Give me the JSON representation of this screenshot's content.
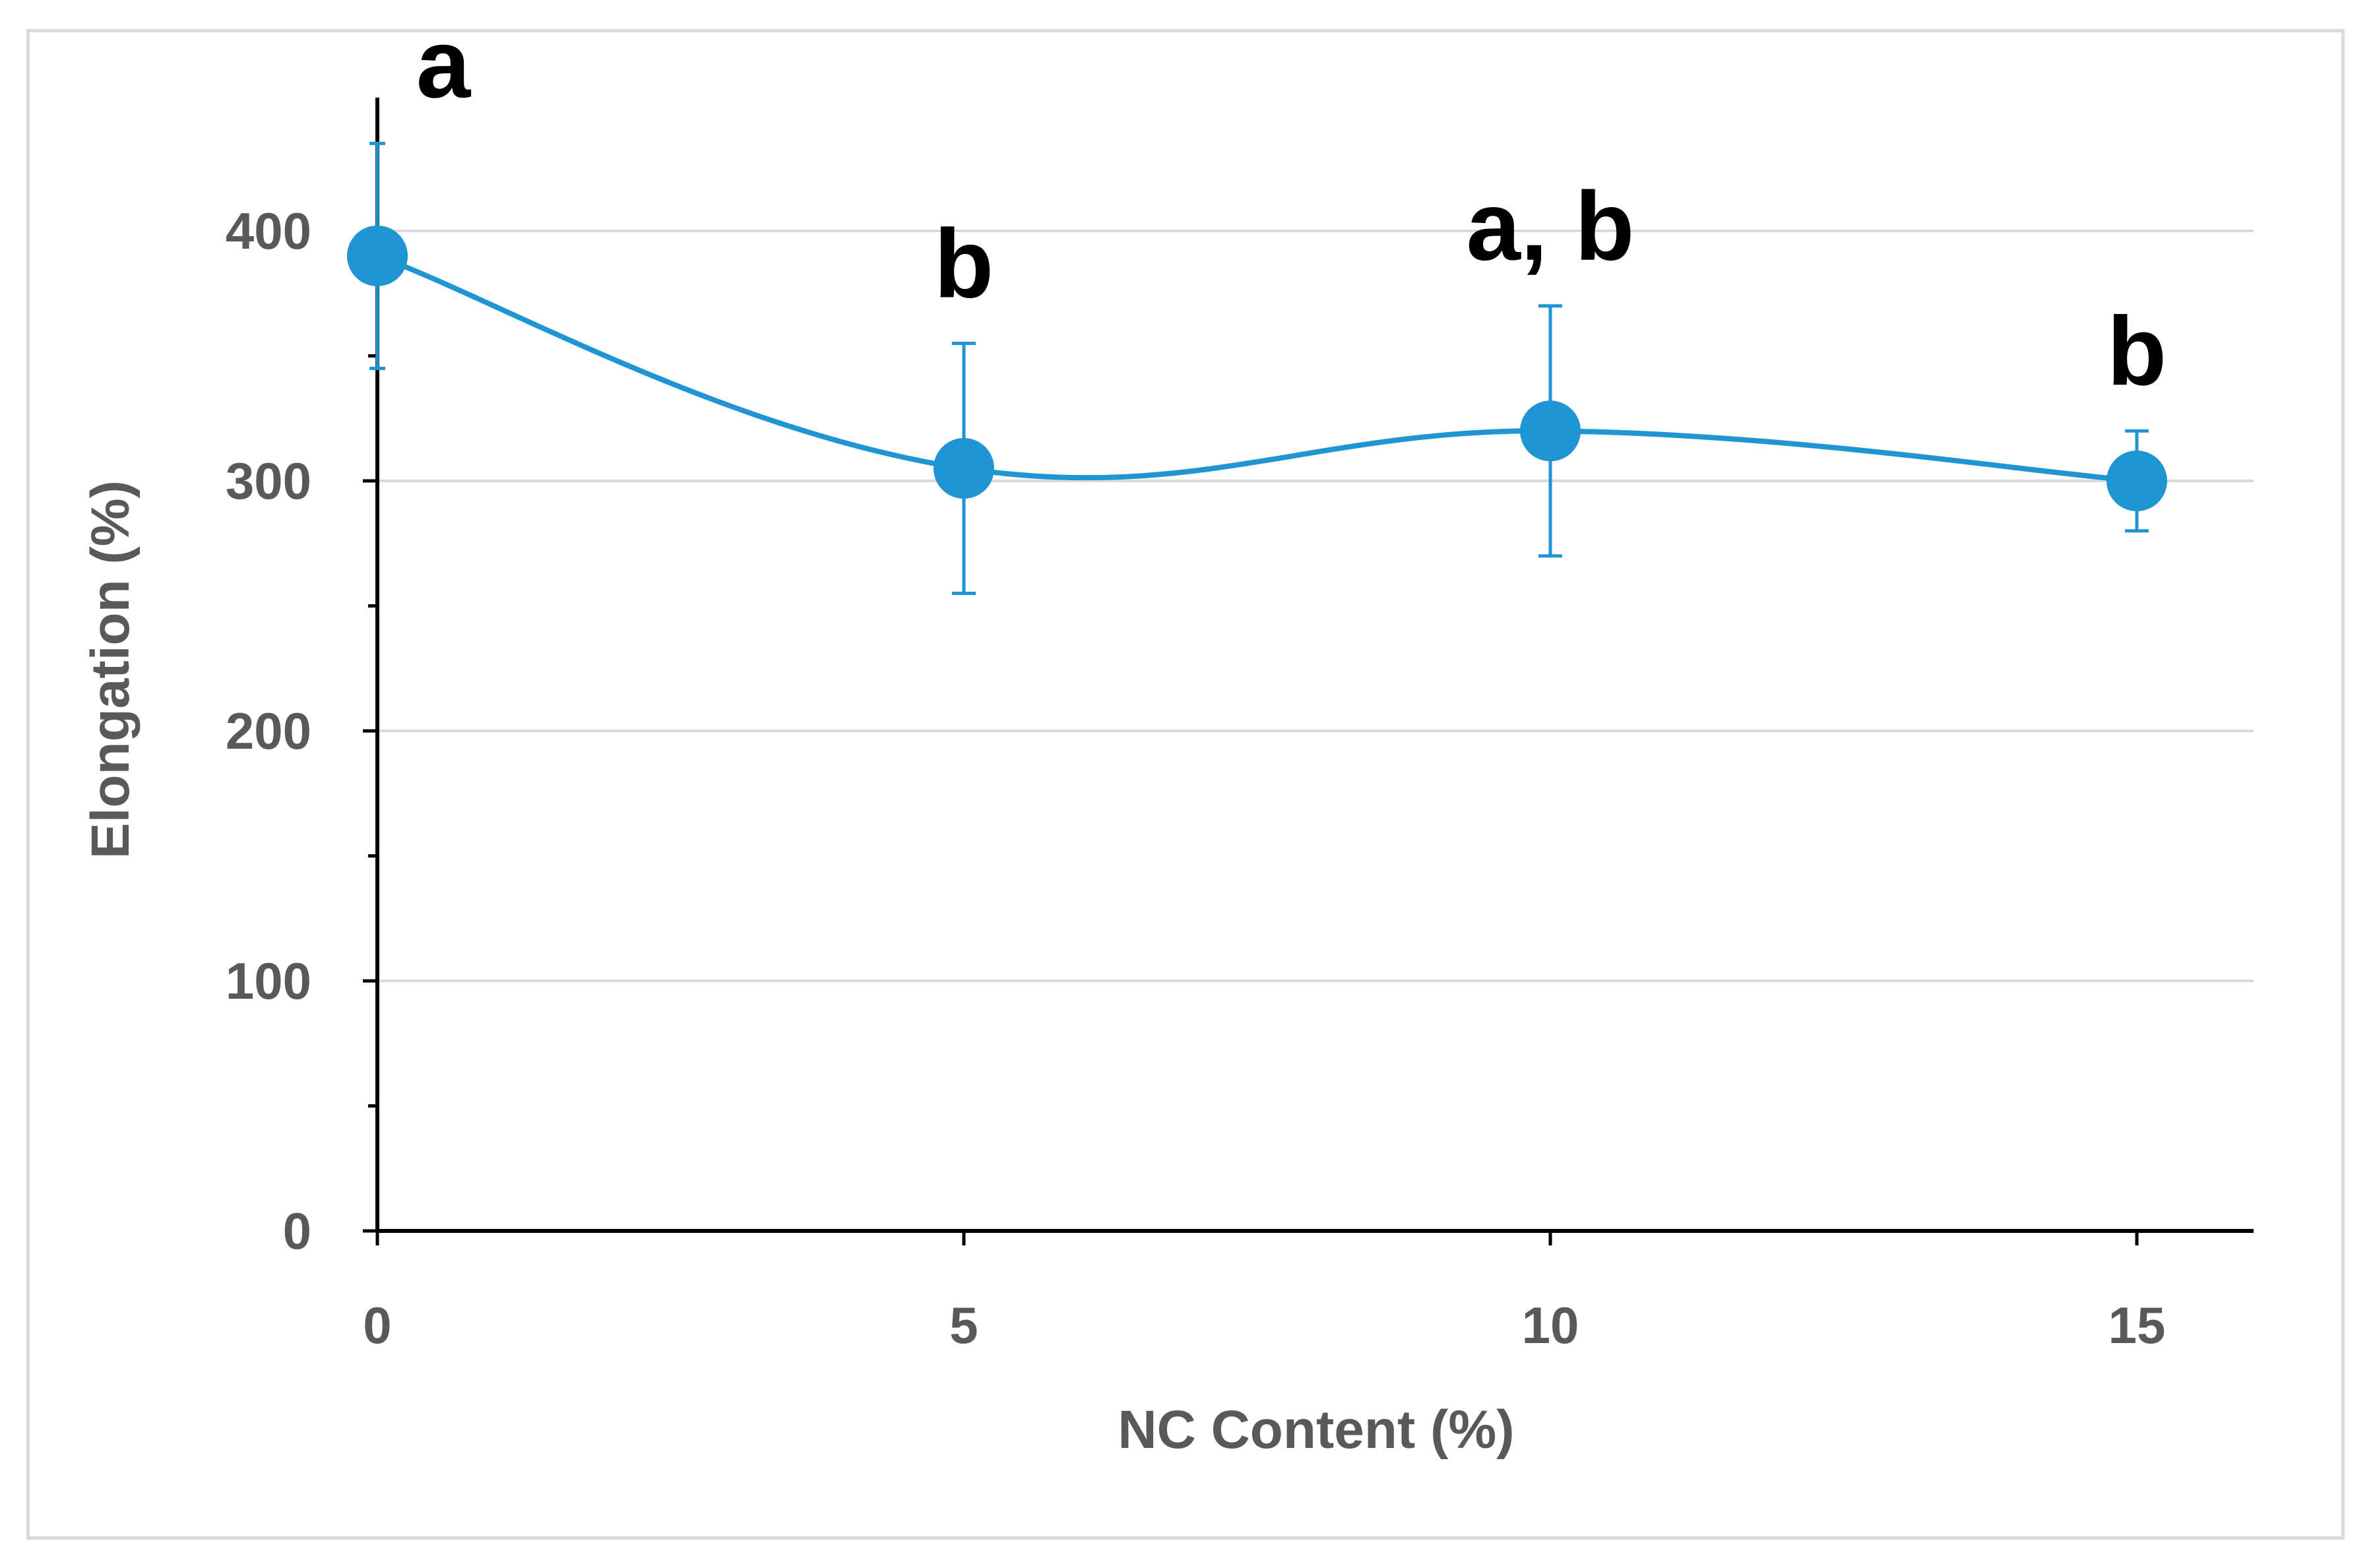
{
  "chart_data": {
    "type": "line",
    "xlabel": "NC Content (%)",
    "ylabel": "Elongation (%)",
    "xlim": [
      0,
      16
    ],
    "ylim": [
      0,
      440
    ],
    "x_ticks": [
      "0",
      "5",
      "10",
      "15"
    ],
    "y_ticks": [
      "0",
      "100",
      "200",
      "300",
      "400"
    ],
    "grid": "horizontal",
    "line_color": "#1f95d3",
    "series": [
      {
        "x": [
          0,
          5,
          10,
          15
        ],
        "y": [
          390,
          305,
          320,
          300
        ],
        "error": [
          45,
          50,
          50,
          20
        ],
        "labels": [
          "a",
          "b",
          "a, b",
          "b"
        ]
      }
    ]
  }
}
